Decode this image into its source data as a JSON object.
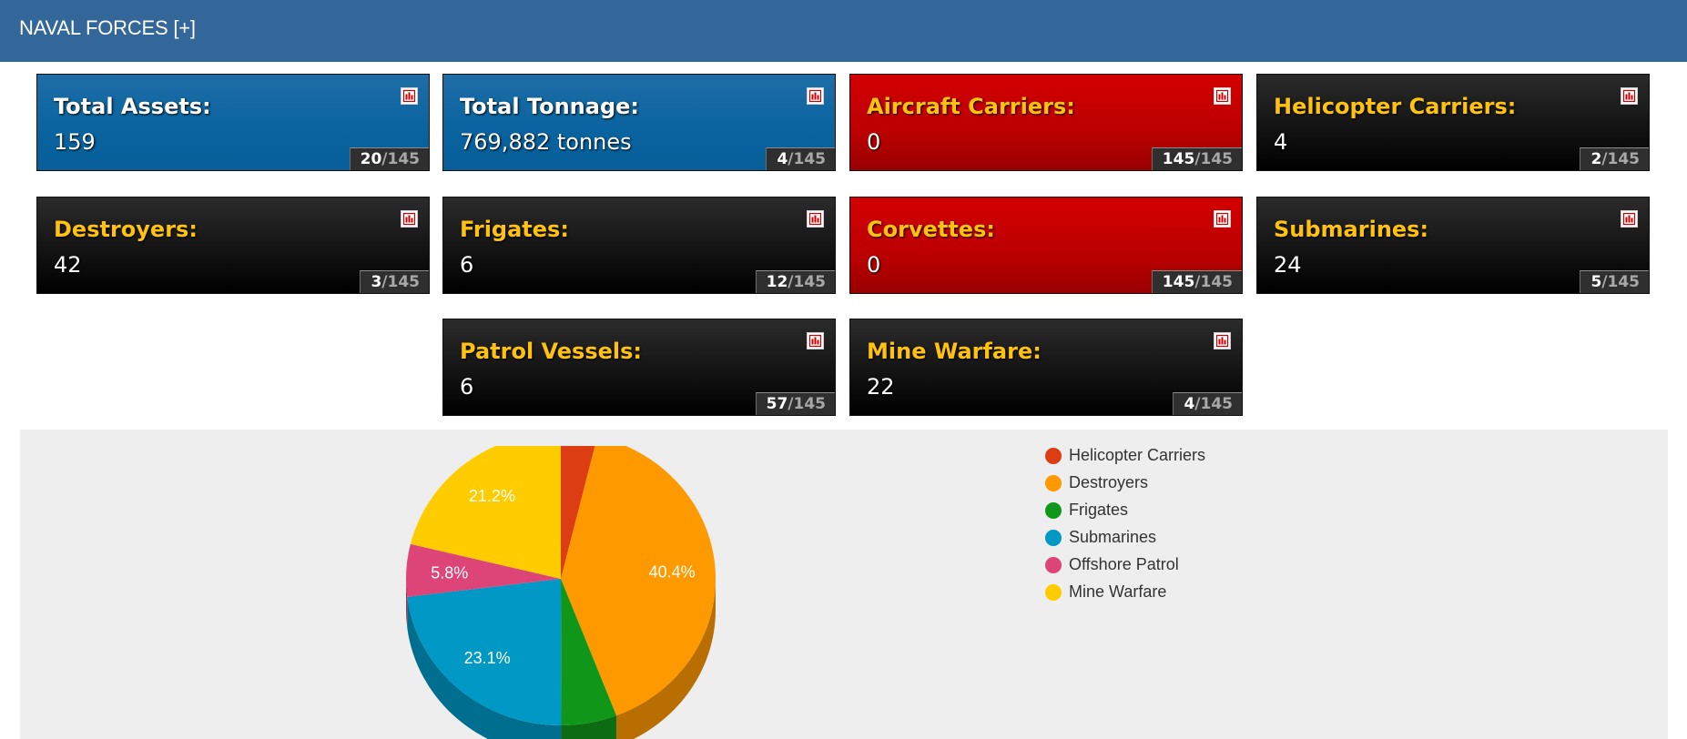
{
  "header": {
    "title": "NAVAL FORCES [+]"
  },
  "cards": [
    {
      "id": "total-assets",
      "label": "Total Assets:",
      "value": "159",
      "rank": "20",
      "total": "/145",
      "theme": "blue"
    },
    {
      "id": "total-tonnage",
      "label": "Total Tonnage:",
      "value": "769,882 tonnes",
      "rank": "4",
      "total": "/145",
      "theme": "blue"
    },
    {
      "id": "aircraft-carriers",
      "label": "Aircraft Carriers:",
      "value": "0",
      "rank": "145",
      "total": "/145",
      "theme": "red"
    },
    {
      "id": "helicopter-carriers",
      "label": "Helicopter Carriers:",
      "value": "4",
      "rank": "2",
      "total": "/145",
      "theme": "black"
    },
    {
      "id": "destroyers",
      "label": "Destroyers:",
      "value": "42",
      "rank": "3",
      "total": "/145",
      "theme": "black"
    },
    {
      "id": "frigates",
      "label": "Frigates:",
      "value": "6",
      "rank": "12",
      "total": "/145",
      "theme": "black"
    },
    {
      "id": "corvettes",
      "label": "Corvettes:",
      "value": "0",
      "rank": "145",
      "total": "/145",
      "theme": "red"
    },
    {
      "id": "submarines",
      "label": "Submarines:",
      "value": "24",
      "rank": "5",
      "total": "/145",
      "theme": "black"
    },
    {
      "id": "patrol-vessels",
      "label": "Patrol Vessels:",
      "value": "6",
      "rank": "57",
      "total": "/145",
      "theme": "black"
    },
    {
      "id": "mine-warfare",
      "label": "Mine Warfare:",
      "value": "22",
      "rank": "4",
      "total": "/145",
      "theme": "black"
    }
  ],
  "icons": {
    "chart_button": "bar-chart-icon"
  },
  "chart_data": {
    "type": "pie",
    "style": "3d",
    "title": "",
    "slices": [
      {
        "name": "Helicopter Carriers",
        "value": 3.8,
        "label": "",
        "color": "#dd3d12"
      },
      {
        "name": "Destroyers",
        "value": 40.4,
        "label": "40.4%",
        "color": "#ff9900"
      },
      {
        "name": "Frigates",
        "value": 5.8,
        "label": "",
        "color": "#109618"
      },
      {
        "name": "Submarines",
        "value": 23.1,
        "label": "23.1%",
        "color": "#0099c6"
      },
      {
        "name": "Offshore Patrol",
        "value": 5.8,
        "label": "5.8%",
        "color": "#dd4477"
      },
      {
        "name": "Mine Warfare",
        "value": 21.2,
        "label": "21.2%",
        "color": "#ffcc00"
      }
    ],
    "legend": "right"
  },
  "colors": {
    "header_bg": "#336699",
    "label_gold": "#ffc20e",
    "card_blue": "#0a64a0",
    "card_red": "#bb0000",
    "card_black": "#111111",
    "panel_bg": "#eeeeee"
  }
}
